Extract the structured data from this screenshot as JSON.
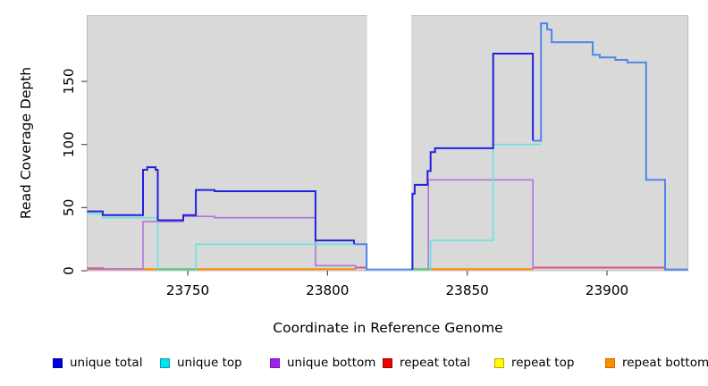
{
  "figure": {
    "background": "#FFFFFF"
  },
  "chart_data": {
    "type": "line",
    "subtype": "step-coverage-plot",
    "title": "",
    "xlabel": "Coordinate in Reference Genome",
    "ylabel": "Read Coverage Depth",
    "xlim": [
      23714,
      23929
    ],
    "ylim": [
      0,
      200
    ],
    "x_ticks": [
      23750,
      23800,
      23850,
      23900
    ],
    "y_ticks": [
      0,
      50,
      100,
      150
    ],
    "grid": false,
    "plot_bg": "#D9D9D9",
    "plot_border": "#B3B3B3",
    "tick_color": "#404040",
    "masked_region": {
      "x1": 23814,
      "x2": 23830,
      "color": "#FFFFFF"
    },
    "series": [
      {
        "name": "unique total",
        "legend_color": "#0000E6",
        "legend_border": "#0000A0",
        "line_width": 2,
        "segments": [
          {
            "color": "#2121E0",
            "points": [
              [
                23714,
                47
              ],
              [
                23719.6,
                47
              ],
              [
                23719.6,
                44
              ],
              [
                23734,
                44
              ],
              [
                23734,
                80
              ],
              [
                23735.5,
                80
              ],
              [
                23735.5,
                82
              ],
              [
                23738.5,
                82
              ],
              [
                23738.5,
                80
              ],
              [
                23739.3,
                80
              ],
              [
                23739.3,
                40
              ],
              [
                23748.4,
                40
              ],
              [
                23748.4,
                44
              ],
              [
                23752.9,
                44
              ],
              [
                23752.9,
                64
              ],
              [
                23759.6,
                64
              ],
              [
                23759.6,
                63
              ],
              [
                23795.7,
                63
              ],
              [
                23795.7,
                24
              ],
              [
                23809.5,
                24
              ],
              [
                23809.5,
                21
              ]
            ]
          },
          {
            "color": "#4D86EB",
            "points": [
              [
                23809.5,
                21
              ],
              [
                23814,
                21
              ],
              [
                23814,
                1
              ],
              [
                23830.4,
                1
              ]
            ]
          },
          {
            "color": "#2121E0",
            "points": [
              [
                23830.4,
                1
              ],
              [
                23830.4,
                61
              ],
              [
                23831.2,
                61
              ],
              [
                23831.2,
                68
              ],
              [
                23835.8,
                68
              ],
              [
                23835.8,
                79
              ],
              [
                23836.9,
                79
              ],
              [
                23836.9,
                94
              ],
              [
                23838.5,
                94
              ],
              [
                23838.5,
                97
              ],
              [
                23859.3,
                97
              ],
              [
                23859.3,
                172
              ],
              [
                23873.5,
                172
              ],
              [
                23873.5,
                103
              ]
            ]
          },
          {
            "color": "#4D86EB",
            "points": [
              [
                23873.5,
                103
              ],
              [
                23876.4,
                103
              ],
              [
                23876.4,
                196
              ],
              [
                23878.6,
                196
              ],
              [
                23878.6,
                191
              ],
              [
                23880.2,
                191
              ],
              [
                23880.2,
                181
              ],
              [
                23894.9,
                181
              ],
              [
                23894.9,
                171
              ],
              [
                23897.4,
                171
              ],
              [
                23897.4,
                169
              ],
              [
                23903,
                169
              ],
              [
                23903,
                167
              ],
              [
                23907.3,
                167
              ],
              [
                23907.3,
                165
              ],
              [
                23914,
                165
              ],
              [
                23914,
                72
              ],
              [
                23920.8,
                72
              ],
              [
                23920.8,
                1
              ],
              [
                23929,
                1
              ]
            ]
          }
        ]
      },
      {
        "name": "unique top",
        "legend_color": "#00E3EE",
        "legend_border": "#00A0B0",
        "line_width": 1.6,
        "segments": [
          {
            "color": "#68E4DC",
            "points": [
              [
                23714,
                45
              ],
              [
                23719.6,
                45
              ],
              [
                23719.6,
                42
              ],
              [
                23739.3,
                42
              ],
              [
                23739.3,
                1
              ],
              [
                23753,
                1
              ],
              [
                23753,
                21
              ],
              [
                23814,
                21
              ],
              [
                23814,
                1
              ]
            ]
          },
          {
            "color": "#68E4DC",
            "points": [
              [
                23830,
                1
              ],
              [
                23836.9,
                1
              ],
              [
                23836.9,
                24
              ],
              [
                23859.3,
                24
              ],
              [
                23859.3,
                100
              ],
              [
                23876.4,
                100
              ]
            ]
          }
        ]
      },
      {
        "name": "unique bottom",
        "legend_color": "#A020F0",
        "legend_border": "#7218B0",
        "line_width": 1.6,
        "segments": [
          {
            "color": "#AE74DC",
            "points": [
              [
                23714,
                1.5
              ],
              [
                23734,
                1.5
              ],
              [
                23734,
                39
              ],
              [
                23748.4,
                39
              ],
              [
                23748.4,
                43
              ],
              [
                23759.6,
                43
              ],
              [
                23759.6,
                42
              ],
              [
                23795.7,
                42
              ],
              [
                23795.7,
                4
              ],
              [
                23810,
                4
              ],
              [
                23810,
                1
              ]
            ]
          },
          {
            "color": "#AE74DC",
            "points": [
              [
                23836.1,
                1
              ],
              [
                23836.1,
                72
              ],
              [
                23873.5,
                72
              ],
              [
                23873.5,
                1
              ]
            ]
          }
        ]
      },
      {
        "name": "repeat total",
        "legend_color": "#EE0000",
        "legend_border": "#A00000",
        "line_width": 2,
        "segments": [
          {
            "color": "#D9537A",
            "points": [
              [
                23714,
                2
              ],
              [
                23720,
                2
              ]
            ]
          },
          {
            "color": "#D9537A",
            "points": [
              [
                23810,
                2.5
              ],
              [
                23814,
                2.5
              ]
            ]
          },
          {
            "color": "#D9537A",
            "points": [
              [
                23873.5,
                2.5
              ],
              [
                23921,
                2.5
              ]
            ]
          }
        ]
      },
      {
        "name": "repeat top",
        "legend_color": "#FFFF00",
        "legend_border": "#C8A000",
        "line_width": 2,
        "segments": []
      },
      {
        "name": "repeat bottom",
        "legend_color": "#FF8C00",
        "legend_border": "#C86E00",
        "line_width": 2,
        "segments": [
          {
            "color": "#FF8C00",
            "points": [
              [
                23714,
                1.2
              ],
              [
                23810,
                1.2
              ]
            ]
          },
          {
            "color": "#FF8C00",
            "points": [
              [
                23830,
                1.2
              ],
              [
                23873.5,
                1.2
              ]
            ]
          }
        ]
      }
    ],
    "overlap_segments": [
      {
        "note": "unique top at zero over repeat bottom",
        "color": "#5BCB8F",
        "points": [
          [
            23739.3,
            1.2
          ],
          [
            23753,
            1.2
          ]
        ]
      },
      {
        "note": "unique top at zero over repeat bottom",
        "color": "#5BCB8F",
        "points": [
          [
            23830,
            1.2
          ],
          [
            23836.9,
            1.2
          ]
        ]
      }
    ],
    "legend": {
      "position": "bottom",
      "entries": [
        {
          "label": "unique total"
        },
        {
          "label": "unique top"
        },
        {
          "label": "unique bottom"
        },
        {
          "label": "repeat total"
        },
        {
          "label": "repeat top"
        },
        {
          "label": "repeat bottom"
        }
      ]
    }
  }
}
